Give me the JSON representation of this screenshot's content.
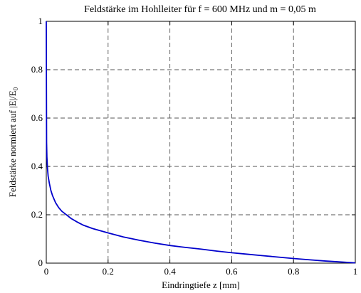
{
  "chart_data": {
    "type": "line",
    "title": "Feldstärke im Hohlleiter für f = 600 MHz und m = 0,05 m",
    "xlabel": "Eindringtiefe z [mm]",
    "ylabel": "Feldstärke normiert auf |E|/E",
    "ylabel_sub": "0",
    "xlim": [
      0,
      1
    ],
    "ylim": [
      0,
      1
    ],
    "grid": true,
    "x_ticks": [
      0,
      0.2,
      0.4,
      0.6,
      0.8,
      1
    ],
    "x_tick_labels": [
      "0",
      "0.2",
      "0.4",
      "0.6",
      "0.8",
      "1"
    ],
    "y_ticks": [
      0,
      0.2,
      0.4,
      0.6,
      0.8,
      1
    ],
    "y_tick_labels": [
      "0",
      "0.2",
      "0.4",
      "0.6",
      "0.8",
      "1"
    ],
    "line_color": "#0000cc",
    "series": [
      {
        "x": [
          0,
          0.0005,
          0.001,
          0.002,
          0.004,
          0.006,
          0.01,
          0.015,
          0.02,
          0.03,
          0.04,
          0.05,
          0.06,
          0.08,
          0.1,
          0.12,
          0.15,
          0.2,
          0.25,
          0.3,
          0.35,
          0.4,
          0.45,
          0.5,
          0.55,
          0.6,
          0.65,
          0.7,
          0.75,
          0.8,
          0.85,
          0.9,
          0.95,
          1.0
        ],
        "y": [
          1.0,
          0.72,
          0.5,
          0.44,
          0.39,
          0.36,
          0.33,
          0.3,
          0.28,
          0.25,
          0.23,
          0.215,
          0.205,
          0.185,
          0.17,
          0.157,
          0.143,
          0.125,
          0.108,
          0.095,
          0.083,
          0.073,
          0.065,
          0.058,
          0.05,
          0.043,
          0.037,
          0.031,
          0.025,
          0.019,
          0.014,
          0.009,
          0.005,
          0.001
        ]
      }
    ]
  }
}
